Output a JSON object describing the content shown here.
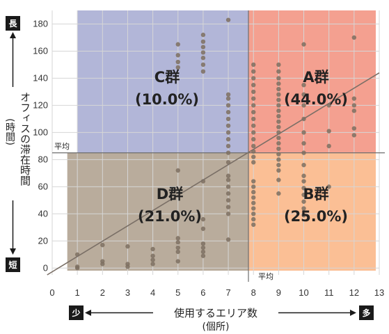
{
  "chart_data": {
    "type": "scatter",
    "xlabel": "使用するエリア数",
    "xlabel_sub": "(個所)",
    "ylabel": "オフィスの滞在時間",
    "ylabel_sub": "(時間)",
    "xlim": [
      0,
      13
    ],
    "ylim": [
      -5,
      190
    ],
    "x_ticks": [
      0,
      1,
      2,
      3,
      4,
      5,
      6,
      7,
      8,
      9,
      10,
      11,
      12,
      13
    ],
    "y_ticks": [
      0,
      20,
      40,
      60,
      80,
      100,
      120,
      140,
      160,
      180
    ],
    "grid": true,
    "avg_x": 7.8,
    "avg_y": 85,
    "avg_x_label": "平均",
    "avg_y_label": "平均",
    "trend_line": {
      "x0": -0.2,
      "y0": -5,
      "x1": 13,
      "y1": 144
    },
    "colors": {
      "A": "#f4a090",
      "B": "#fbbf95",
      "C": "#b2b6d8",
      "D": "#b9ac9c",
      "point": "#7d6f60",
      "trend": "#7a6f66",
      "avg_line": "#6e6e6e",
      "end_box": "#1a1a1a"
    },
    "quadrants": [
      {
        "name": "A",
        "label": "A群",
        "percent": "(44.0%)"
      },
      {
        "name": "B",
        "label": "B群",
        "percent": "(25.0%)"
      },
      {
        "name": "C",
        "label": "C群",
        "percent": "(10.0%)"
      },
      {
        "name": "D",
        "label": "D群",
        "percent": "(21.0%)"
      }
    ],
    "x_axis_ends": {
      "left": "少",
      "right": "多"
    },
    "y_axis_ends": {
      "top": "長",
      "bottom": "短"
    },
    "points": [
      [
        1,
        0
      ],
      [
        1,
        1
      ],
      [
        1,
        10
      ],
      [
        2,
        3
      ],
      [
        2,
        5
      ],
      [
        2,
        17
      ],
      [
        3,
        1
      ],
      [
        3,
        3
      ],
      [
        3,
        16
      ],
      [
        4,
        3
      ],
      [
        4,
        6
      ],
      [
        4,
        9
      ],
      [
        4,
        14
      ],
      [
        5,
        5
      ],
      [
        5,
        12
      ],
      [
        5,
        15
      ],
      [
        5,
        19
      ],
      [
        5,
        22
      ],
      [
        5,
        72
      ],
      [
        5,
        148
      ],
      [
        5,
        152
      ],
      [
        5,
        157
      ],
      [
        5,
        165
      ],
      [
        6,
        9
      ],
      [
        6,
        12
      ],
      [
        6,
        15
      ],
      [
        6,
        18
      ],
      [
        6,
        29
      ],
      [
        6,
        36
      ],
      [
        6,
        64
      ],
      [
        6,
        145
      ],
      [
        6,
        150
      ],
      [
        6,
        155
      ],
      [
        6,
        159
      ],
      [
        6,
        163
      ],
      [
        6,
        167
      ],
      [
        6,
        172
      ],
      [
        7,
        21
      ],
      [
        7,
        40
      ],
      [
        7,
        45
      ],
      [
        7,
        50
      ],
      [
        7,
        55
      ],
      [
        7,
        60
      ],
      [
        7,
        65
      ],
      [
        7,
        68
      ],
      [
        7,
        78
      ],
      [
        7,
        85
      ],
      [
        7,
        90
      ],
      [
        7,
        95
      ],
      [
        7,
        100
      ],
      [
        7,
        105
      ],
      [
        7,
        110
      ],
      [
        7,
        115
      ],
      [
        7,
        120
      ],
      [
        7,
        125
      ],
      [
        7,
        128
      ],
      [
        7,
        183
      ],
      [
        8,
        32
      ],
      [
        8,
        36
      ],
      [
        8,
        40
      ],
      [
        8,
        44
      ],
      [
        8,
        48
      ],
      [
        8,
        52
      ],
      [
        8,
        56
      ],
      [
        8,
        60
      ],
      [
        8,
        64
      ],
      [
        8,
        78
      ],
      [
        8,
        82
      ],
      [
        8,
        86
      ],
      [
        8,
        90
      ],
      [
        8,
        95
      ],
      [
        8,
        100
      ],
      [
        8,
        105
      ],
      [
        8,
        110
      ],
      [
        8,
        115
      ],
      [
        8,
        120
      ],
      [
        8,
        125
      ],
      [
        8,
        130
      ],
      [
        8,
        135
      ],
      [
        8,
        140
      ],
      [
        8,
        145
      ],
      [
        8,
        150
      ],
      [
        9,
        55
      ],
      [
        9,
        65
      ],
      [
        9,
        72
      ],
      [
        9,
        76
      ],
      [
        9,
        80
      ],
      [
        9,
        84
      ],
      [
        9,
        88
      ],
      [
        9,
        92
      ],
      [
        9,
        96
      ],
      [
        9,
        100
      ],
      [
        9,
        104
      ],
      [
        9,
        108
      ],
      [
        9,
        112
      ],
      [
        9,
        116
      ],
      [
        9,
        120
      ],
      [
        9,
        124
      ],
      [
        9,
        128
      ],
      [
        9,
        132
      ],
      [
        9,
        136
      ],
      [
        9,
        140
      ],
      [
        9,
        145
      ],
      [
        9,
        150
      ],
      [
        10,
        39
      ],
      [
        10,
        44
      ],
      [
        10,
        49
      ],
      [
        10,
        54
      ],
      [
        10,
        59
      ],
      [
        10,
        64
      ],
      [
        10,
        68
      ],
      [
        10,
        76
      ],
      [
        10,
        85
      ],
      [
        10,
        92
      ],
      [
        10,
        100
      ],
      [
        10,
        110
      ],
      [
        10,
        120
      ],
      [
        10,
        128
      ],
      [
        10,
        135
      ],
      [
        10,
        165
      ],
      [
        11,
        60
      ],
      [
        11,
        90
      ],
      [
        11,
        101
      ],
      [
        11,
        120
      ],
      [
        12,
        98
      ],
      [
        12,
        103
      ],
      [
        12,
        116
      ],
      [
        12,
        120
      ],
      [
        12,
        125
      ],
      [
        12,
        170
      ]
    ]
  }
}
